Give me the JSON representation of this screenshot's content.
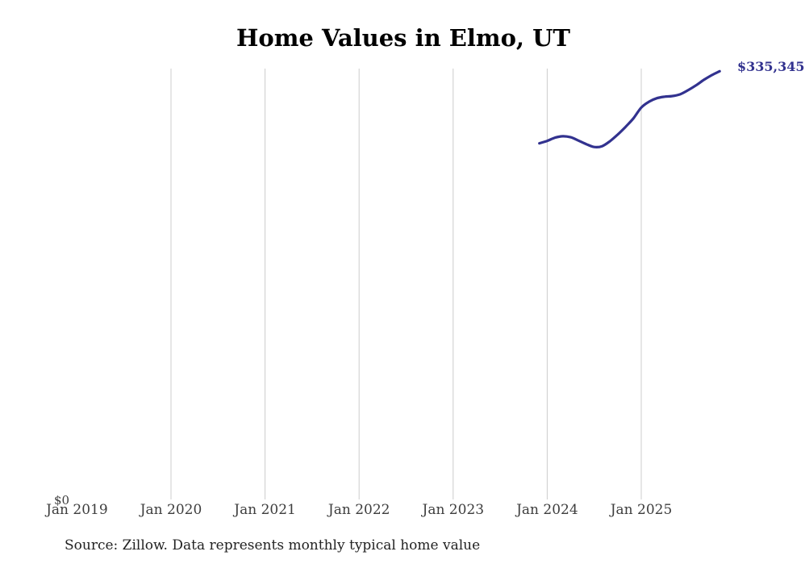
{
  "page": {
    "title": "Home Values in Elmo, UT",
    "source": "Source: Zillow. Data represents monthly typical home value"
  },
  "colors": {
    "line": "#32328f",
    "grid": "#cccccc",
    "tick_text": "#3d3d3d",
    "title_text": "#000000",
    "source_text": "#222222",
    "background": "#ffffff"
  },
  "chart_data": {
    "type": "line",
    "title": "Home Values in Elmo, UT",
    "xlabel": "",
    "ylabel": "",
    "ylim": [
      0,
      337400
    ],
    "grid": "vertical-only",
    "legend": "none",
    "x_tick_labels": [
      "Jan 2019",
      "Jan 2020",
      "Jan 2021",
      "Jan 2022",
      "Jan 2023",
      "Jan 2024",
      "Jan 2025"
    ],
    "gridline_years": [
      2020,
      2021,
      2022,
      2023,
      2024,
      2025
    ],
    "y_tick_label": "$0",
    "end_value_label": "$335,345",
    "series": [
      {
        "name": "Typical home value",
        "x": [
          "Dec 2023",
          "Jan 2024",
          "Feb 2024",
          "Mar 2024",
          "Apr 2024",
          "May 2024",
          "Jun 2024",
          "Jul 2024",
          "Aug 2024",
          "Sep 2024",
          "Oct 2024",
          "Nov 2024",
          "Dec 2024",
          "Jan 2025",
          "Feb 2025",
          "Mar 2025",
          "Apr 2025",
          "May 2025",
          "Jun 2025",
          "Jul 2025",
          "Aug 2025",
          "Sep 2025",
          "Oct 2025",
          "Nov 2025"
        ],
        "values": [
          278900,
          280800,
          283300,
          284400,
          283600,
          281000,
          278200,
          276000,
          276600,
          280500,
          285800,
          291800,
          298400,
          306900,
          311500,
          314200,
          315400,
          315900,
          317400,
          320600,
          324300,
          328600,
          332300,
          335345
        ]
      }
    ]
  }
}
